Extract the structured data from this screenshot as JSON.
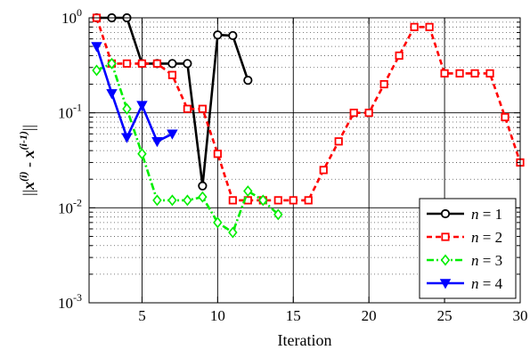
{
  "chart_data": {
    "type": "line",
    "xlabel": "Iteration",
    "ylabel_parts": [
      "||",
      "x",
      "(i)",
      " - ",
      "x",
      "(i-1)",
      "||"
    ],
    "xscale": "linear",
    "yscale": "log",
    "xlim": [
      1.5,
      30
    ],
    "ylim": [
      0.001,
      1
    ],
    "xticks": [
      5,
      10,
      15,
      20,
      25,
      30
    ],
    "xtick_labels": [
      "5",
      "10",
      "15",
      "20",
      "25",
      "30"
    ],
    "yticks": [
      0.001,
      0.01,
      0.1,
      1
    ],
    "ytick_labels": [
      {
        "base": "10",
        "exp": "-3"
      },
      {
        "base": "10",
        "exp": "-2"
      },
      {
        "base": "10",
        "exp": "-1"
      },
      {
        "base": "10",
        "exp": "0"
      }
    ],
    "grid": true,
    "legend_position": "bottom-right",
    "series": [
      {
        "name_var": "n",
        "name_eq": " = ",
        "name_val": "1",
        "color": "#000000",
        "dash": "solid",
        "marker": "circle",
        "x": [
          2,
          3,
          4,
          5,
          6,
          7,
          8,
          9,
          10,
          11,
          12
        ],
        "y": [
          1.0,
          1.0,
          1.0,
          0.33,
          0.33,
          0.33,
          0.33,
          0.017,
          0.66,
          0.65,
          0.22
        ]
      },
      {
        "name_var": "n",
        "name_eq": " = ",
        "name_val": "2",
        "color": "#ff0000",
        "dash": "dashed",
        "marker": "square",
        "x": [
          2,
          3,
          4,
          5,
          6,
          7,
          8,
          9,
          10,
          11,
          12,
          13,
          14,
          15,
          16,
          17,
          18,
          19,
          20,
          21,
          22,
          23,
          24,
          25,
          26,
          27,
          28,
          29,
          30
        ],
        "y": [
          1.0,
          0.33,
          0.33,
          0.33,
          0.33,
          0.25,
          0.11,
          0.11,
          0.037,
          0.012,
          0.012,
          0.012,
          0.012,
          0.012,
          0.012,
          0.025,
          0.05,
          0.1,
          0.1,
          0.2,
          0.4,
          0.8,
          0.8,
          0.26,
          0.26,
          0.26,
          0.26,
          0.09,
          0.03
        ]
      },
      {
        "name_var": "n",
        "name_eq": " = ",
        "name_val": "3",
        "color": "#00ee00",
        "dash": "dashdot",
        "marker": "diamond",
        "x": [
          2,
          3,
          4,
          5,
          6,
          7,
          8,
          9,
          10,
          11,
          12,
          13,
          14
        ],
        "y": [
          0.28,
          0.33,
          0.11,
          0.037,
          0.012,
          0.012,
          0.012,
          0.013,
          0.007,
          0.0055,
          0.015,
          0.012,
          0.0085
        ]
      },
      {
        "name_var": "n",
        "name_eq": " = ",
        "name_val": "4",
        "color": "#0000ff",
        "dash": "solid",
        "marker": "triangle-down",
        "x": [
          2,
          3,
          4,
          5,
          6,
          7
        ],
        "y": [
          0.5,
          0.16,
          0.055,
          0.12,
          0.05,
          0.06
        ]
      }
    ]
  }
}
